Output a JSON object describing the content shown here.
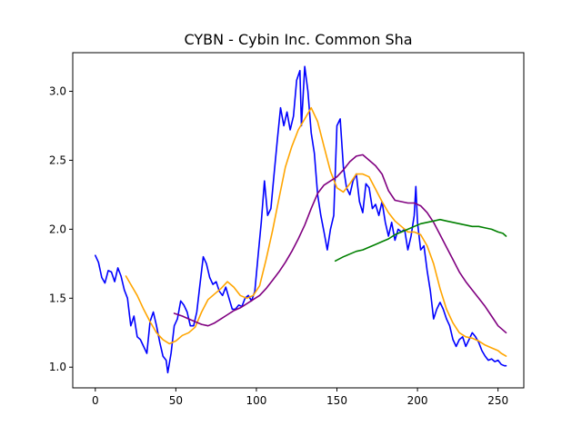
{
  "chart_data": {
    "type": "line",
    "title": "CYBN - Cybin Inc. Common Sha",
    "xlabel": "",
    "ylabel": "",
    "xlim": [
      -14,
      266
    ],
    "ylim": [
      0.85,
      3.28
    ],
    "xticks": [
      0,
      50,
      100,
      150,
      200,
      250
    ],
    "yticks": [
      1.0,
      1.5,
      2.0,
      2.5,
      3.0
    ],
    "xtick_labels": [
      "0",
      "50",
      "100",
      "150",
      "200",
      "250"
    ],
    "ytick_labels": [
      "1.0",
      "1.5",
      "2.0",
      "2.5",
      "3.0"
    ],
    "grid": false,
    "legend": "none",
    "series": [
      {
        "color": "#0000ff",
        "points": [
          [
            0,
            1.81
          ],
          [
            2,
            1.76
          ],
          [
            4,
            1.65
          ],
          [
            6,
            1.61
          ],
          [
            8,
            1.7
          ],
          [
            10,
            1.69
          ],
          [
            12,
            1.62
          ],
          [
            14,
            1.72
          ],
          [
            16,
            1.66
          ],
          [
            18,
            1.56
          ],
          [
            20,
            1.5
          ],
          [
            22,
            1.3
          ],
          [
            24,
            1.37
          ],
          [
            26,
            1.22
          ],
          [
            28,
            1.2
          ],
          [
            30,
            1.15
          ],
          [
            32,
            1.1
          ],
          [
            34,
            1.33
          ],
          [
            36,
            1.4
          ],
          [
            38,
            1.3
          ],
          [
            40,
            1.18
          ],
          [
            42,
            1.08
          ],
          [
            44,
            1.05
          ],
          [
            45,
            0.96
          ],
          [
            47,
            1.1
          ],
          [
            49,
            1.3
          ],
          [
            51,
            1.35
          ],
          [
            53,
            1.48
          ],
          [
            55,
            1.45
          ],
          [
            57,
            1.4
          ],
          [
            59,
            1.3
          ],
          [
            61,
            1.3
          ],
          [
            63,
            1.4
          ],
          [
            65,
            1.6
          ],
          [
            67,
            1.8
          ],
          [
            69,
            1.75
          ],
          [
            71,
            1.65
          ],
          [
            73,
            1.6
          ],
          [
            75,
            1.62
          ],
          [
            77,
            1.55
          ],
          [
            79,
            1.52
          ],
          [
            81,
            1.58
          ],
          [
            83,
            1.5
          ],
          [
            85,
            1.42
          ],
          [
            87,
            1.42
          ],
          [
            89,
            1.45
          ],
          [
            91,
            1.44
          ],
          [
            93,
            1.5
          ],
          [
            95,
            1.52
          ],
          [
            97,
            1.48
          ],
          [
            99,
            1.55
          ],
          [
            101,
            1.8
          ],
          [
            103,
            2.05
          ],
          [
            105,
            2.35
          ],
          [
            107,
            2.1
          ],
          [
            109,
            2.15
          ],
          [
            111,
            2.4
          ],
          [
            113,
            2.65
          ],
          [
            115,
            2.88
          ],
          [
            117,
            2.75
          ],
          [
            119,
            2.85
          ],
          [
            121,
            2.72
          ],
          [
            123,
            2.82
          ],
          [
            125,
            3.08
          ],
          [
            127,
            3.15
          ],
          [
            128,
            2.75
          ],
          [
            130,
            3.18
          ],
          [
            132,
            3.0
          ],
          [
            134,
            2.7
          ],
          [
            136,
            2.55
          ],
          [
            138,
            2.25
          ],
          [
            140,
            2.1
          ],
          [
            142,
            1.98
          ],
          [
            144,
            1.85
          ],
          [
            146,
            2.0
          ],
          [
            148,
            2.1
          ],
          [
            150,
            2.75
          ],
          [
            152,
            2.8
          ],
          [
            154,
            2.45
          ],
          [
            156,
            2.3
          ],
          [
            158,
            2.25
          ],
          [
            160,
            2.35
          ],
          [
            162,
            2.4
          ],
          [
            164,
            2.2
          ],
          [
            166,
            2.12
          ],
          [
            168,
            2.33
          ],
          [
            170,
            2.3
          ],
          [
            172,
            2.15
          ],
          [
            174,
            2.18
          ],
          [
            176,
            2.1
          ],
          [
            178,
            2.2
          ],
          [
            180,
            2.05
          ],
          [
            182,
            1.95
          ],
          [
            184,
            2.05
          ],
          [
            186,
            1.92
          ],
          [
            188,
            2.0
          ],
          [
            190,
            1.98
          ],
          [
            192,
            2.0
          ],
          [
            194,
            1.85
          ],
          [
            196,
            1.95
          ],
          [
            198,
            2.1
          ],
          [
            199,
            2.31
          ],
          [
            200,
            2.05
          ],
          [
            202,
            1.85
          ],
          [
            204,
            1.88
          ],
          [
            206,
            1.7
          ],
          [
            208,
            1.55
          ],
          [
            210,
            1.35
          ],
          [
            212,
            1.42
          ],
          [
            214,
            1.47
          ],
          [
            216,
            1.42
          ],
          [
            218,
            1.35
          ],
          [
            220,
            1.3
          ],
          [
            222,
            1.2
          ],
          [
            224,
            1.15
          ],
          [
            226,
            1.2
          ],
          [
            228,
            1.22
          ],
          [
            230,
            1.15
          ],
          [
            232,
            1.2
          ],
          [
            234,
            1.25
          ],
          [
            236,
            1.22
          ],
          [
            238,
            1.18
          ],
          [
            240,
            1.12
          ],
          [
            242,
            1.08
          ],
          [
            244,
            1.05
          ],
          [
            246,
            1.06
          ],
          [
            248,
            1.04
          ],
          [
            250,
            1.05
          ],
          [
            252,
            1.02
          ],
          [
            254,
            1.01
          ],
          [
            255,
            1.01
          ]
        ]
      },
      {
        "color": "#ffa500",
        "points": [
          [
            19,
            1.66
          ],
          [
            22,
            1.6
          ],
          [
            26,
            1.52
          ],
          [
            30,
            1.42
          ],
          [
            34,
            1.33
          ],
          [
            38,
            1.25
          ],
          [
            42,
            1.2
          ],
          [
            46,
            1.17
          ],
          [
            50,
            1.19
          ],
          [
            54,
            1.23
          ],
          [
            58,
            1.25
          ],
          [
            62,
            1.29
          ],
          [
            66,
            1.4
          ],
          [
            70,
            1.49
          ],
          [
            74,
            1.53
          ],
          [
            78,
            1.57
          ],
          [
            82,
            1.62
          ],
          [
            86,
            1.58
          ],
          [
            90,
            1.52
          ],
          [
            94,
            1.5
          ],
          [
            98,
            1.52
          ],
          [
            102,
            1.59
          ],
          [
            106,
            1.78
          ],
          [
            110,
            1.99
          ],
          [
            114,
            2.22
          ],
          [
            118,
            2.45
          ],
          [
            122,
            2.6
          ],
          [
            126,
            2.72
          ],
          [
            130,
            2.8
          ],
          [
            134,
            2.88
          ],
          [
            138,
            2.78
          ],
          [
            142,
            2.6
          ],
          [
            146,
            2.42
          ],
          [
            150,
            2.3
          ],
          [
            154,
            2.27
          ],
          [
            158,
            2.33
          ],
          [
            162,
            2.4
          ],
          [
            166,
            2.4
          ],
          [
            170,
            2.38
          ],
          [
            174,
            2.29
          ],
          [
            178,
            2.2
          ],
          [
            182,
            2.12
          ],
          [
            186,
            2.06
          ],
          [
            190,
            2.02
          ],
          [
            194,
            1.98
          ],
          [
            198,
            1.98
          ],
          [
            202,
            1.96
          ],
          [
            206,
            1.88
          ],
          [
            210,
            1.75
          ],
          [
            214,
            1.57
          ],
          [
            218,
            1.42
          ],
          [
            222,
            1.32
          ],
          [
            226,
            1.25
          ],
          [
            230,
            1.22
          ],
          [
            234,
            1.21
          ],
          [
            238,
            1.19
          ],
          [
            242,
            1.16
          ],
          [
            246,
            1.14
          ],
          [
            250,
            1.12
          ],
          [
            252,
            1.1
          ],
          [
            255,
            1.08
          ]
        ]
      },
      {
        "color": "#800080",
        "points": [
          [
            49,
            1.39
          ],
          [
            54,
            1.37
          ],
          [
            58,
            1.35
          ],
          [
            62,
            1.33
          ],
          [
            66,
            1.31
          ],
          [
            70,
            1.3
          ],
          [
            74,
            1.32
          ],
          [
            78,
            1.35
          ],
          [
            82,
            1.38
          ],
          [
            86,
            1.41
          ],
          [
            90,
            1.43
          ],
          [
            94,
            1.46
          ],
          [
            98,
            1.49
          ],
          [
            102,
            1.52
          ],
          [
            106,
            1.57
          ],
          [
            110,
            1.63
          ],
          [
            114,
            1.69
          ],
          [
            118,
            1.76
          ],
          [
            122,
            1.84
          ],
          [
            126,
            1.93
          ],
          [
            130,
            2.03
          ],
          [
            134,
            2.15
          ],
          [
            138,
            2.26
          ],
          [
            142,
            2.32
          ],
          [
            146,
            2.35
          ],
          [
            150,
            2.38
          ],
          [
            154,
            2.43
          ],
          [
            158,
            2.49
          ],
          [
            162,
            2.53
          ],
          [
            166,
            2.54
          ],
          [
            170,
            2.5
          ],
          [
            174,
            2.46
          ],
          [
            178,
            2.4
          ],
          [
            182,
            2.28
          ],
          [
            186,
            2.21
          ],
          [
            190,
            2.2
          ],
          [
            194,
            2.19
          ],
          [
            198,
            2.19
          ],
          [
            202,
            2.17
          ],
          [
            206,
            2.12
          ],
          [
            210,
            2.05
          ],
          [
            214,
            1.96
          ],
          [
            218,
            1.87
          ],
          [
            222,
            1.78
          ],
          [
            226,
            1.69
          ],
          [
            230,
            1.62
          ],
          [
            234,
            1.56
          ],
          [
            238,
            1.5
          ],
          [
            242,
            1.44
          ],
          [
            246,
            1.37
          ],
          [
            250,
            1.3
          ],
          [
            252,
            1.28
          ],
          [
            255,
            1.25
          ]
        ]
      },
      {
        "color": "#008000",
        "points": [
          [
            149,
            1.77
          ],
          [
            154,
            1.8
          ],
          [
            158,
            1.82
          ],
          [
            162,
            1.84
          ],
          [
            166,
            1.85
          ],
          [
            170,
            1.87
          ],
          [
            174,
            1.89
          ],
          [
            178,
            1.91
          ],
          [
            182,
            1.93
          ],
          [
            186,
            1.96
          ],
          [
            190,
            1.98
          ],
          [
            194,
            2.0
          ],
          [
            198,
            2.02
          ],
          [
            202,
            2.04
          ],
          [
            206,
            2.05
          ],
          [
            210,
            2.06
          ],
          [
            214,
            2.07
          ],
          [
            218,
            2.06
          ],
          [
            222,
            2.05
          ],
          [
            226,
            2.04
          ],
          [
            230,
            2.03
          ],
          [
            234,
            2.02
          ],
          [
            238,
            2.02
          ],
          [
            242,
            2.01
          ],
          [
            246,
            2.0
          ],
          [
            250,
            1.98
          ],
          [
            253,
            1.97
          ],
          [
            255,
            1.95
          ]
        ]
      }
    ]
  }
}
